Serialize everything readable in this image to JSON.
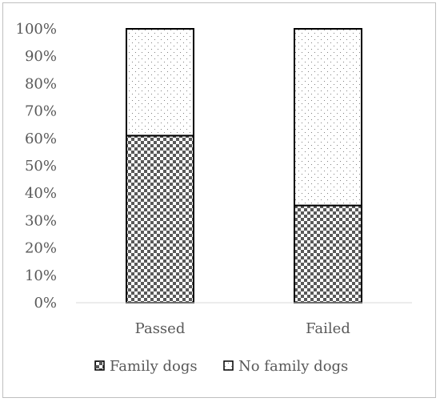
{
  "chart_data": {
    "type": "bar",
    "stacked": true,
    "percent": true,
    "categories": [
      "Passed",
      "Failed"
    ],
    "series": [
      {
        "name": "Family dogs",
        "values": [
          61,
          35.5
        ],
        "pattern": "checker",
        "color": "#595959"
      },
      {
        "name": "No family dogs",
        "values": [
          39,
          64.5
        ],
        "pattern": "dots",
        "color": "#7f7f7f"
      }
    ],
    "ylim": [
      0,
      100
    ],
    "yticks": [
      "0%",
      "10%",
      "20%",
      "30%",
      "40%",
      "50%",
      "60%",
      "70%",
      "80%",
      "90%",
      "100%"
    ],
    "grid": false,
    "legend": "bottom",
    "title": "",
    "xlabel": "",
    "ylabel": ""
  }
}
